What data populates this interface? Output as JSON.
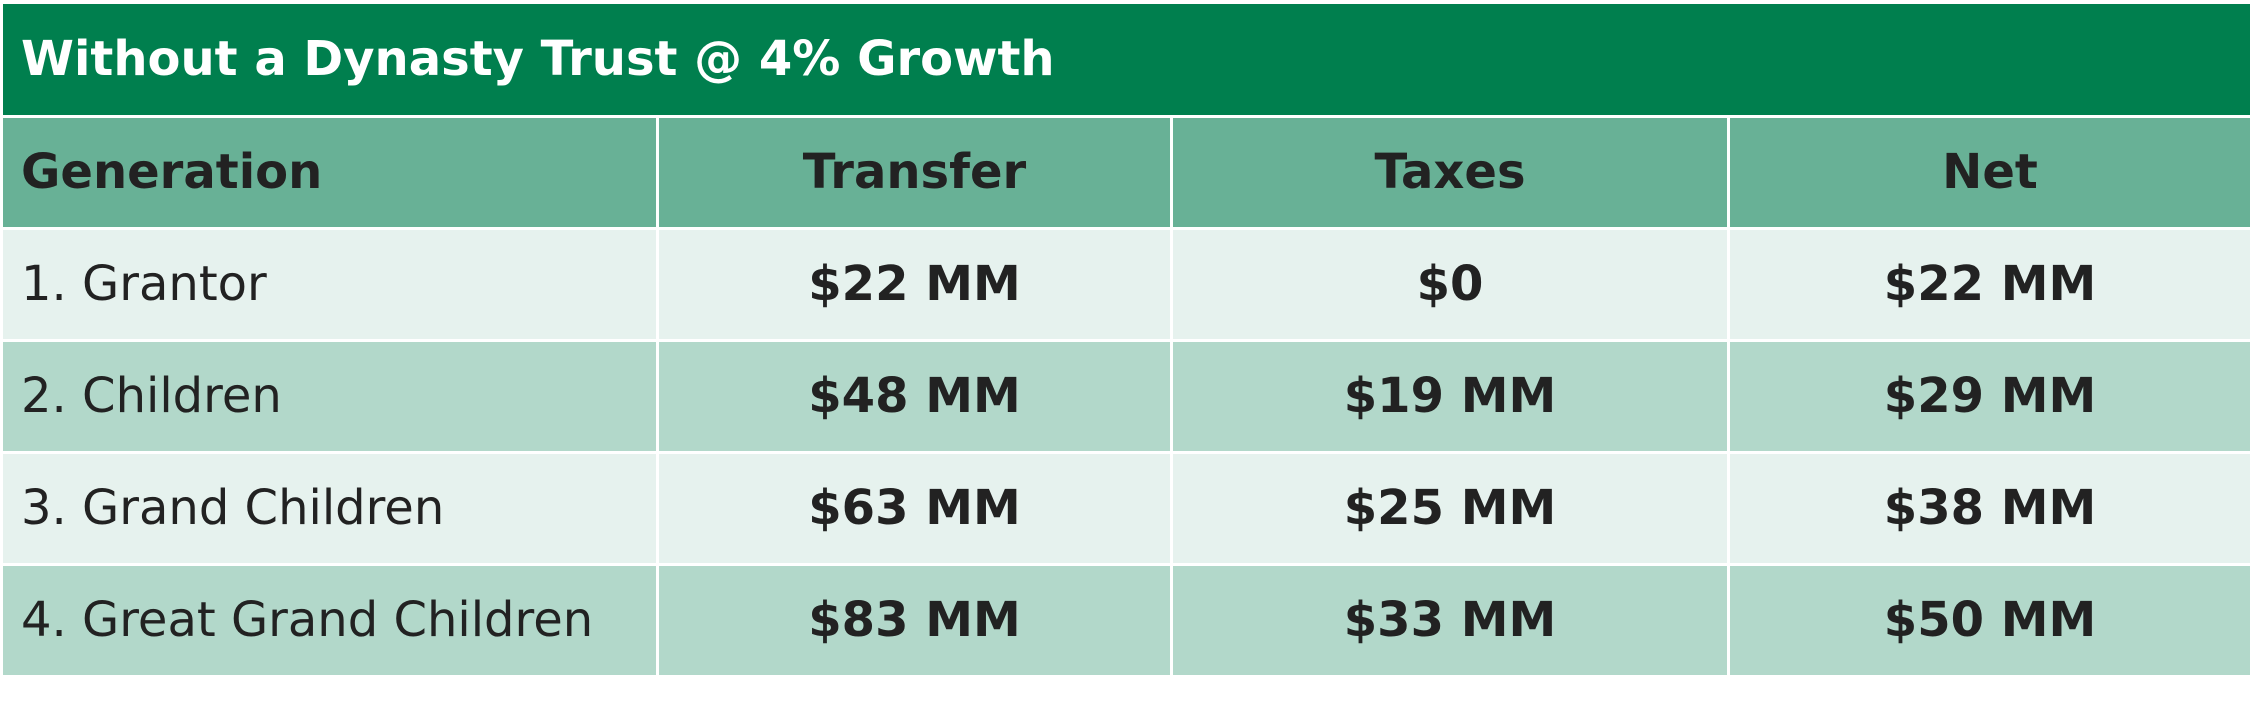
{
  "table": {
    "title": "Without a Dynasty Trust @ 4% Growth",
    "columns": [
      "Generation",
      "Transfer",
      "Taxes",
      "Net"
    ],
    "rows": [
      [
        "1. Grantor",
        "$22 MM",
        "$0",
        "$22 MM"
      ],
      [
        "2. Children",
        "$48 MM",
        "$19 MM",
        "$29 MM"
      ],
      [
        "3. Grand Children",
        "$63 MM",
        "$25 MM",
        "$38 MM"
      ],
      [
        "4. Great Grand Children",
        "$83 MM",
        "$33 MM",
        "$50 MM"
      ]
    ]
  }
}
